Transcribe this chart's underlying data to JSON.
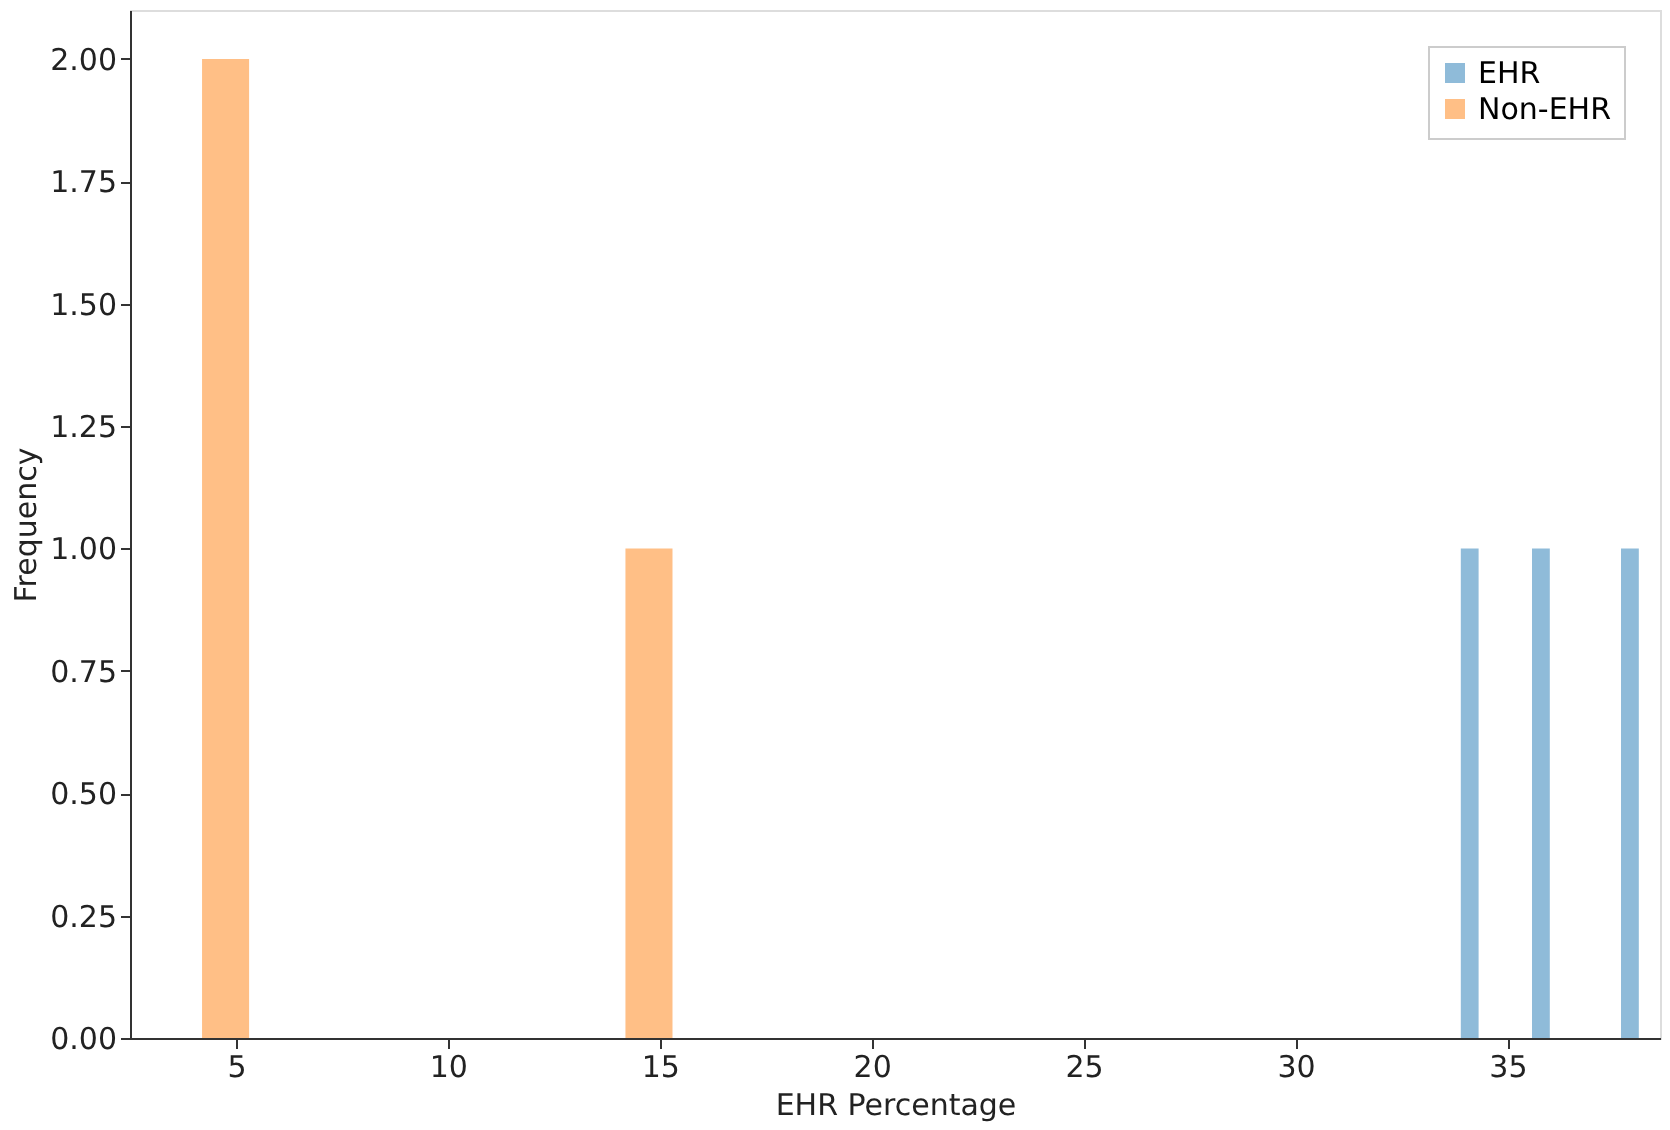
{
  "chart_data": {
    "type": "histogram",
    "xlabel": "EHR Percentage",
    "ylabel": "Frequency",
    "bins": [
      4.2,
      5.31,
      14.19,
      15.3,
      33.9,
      34.32,
      35.58,
      36.0,
      37.68,
      38.1
    ],
    "series": [
      {
        "name": "EHR",
        "color": "#8fbbd9",
        "values": [
          0,
          0,
          0,
          0,
          1,
          0,
          1,
          0,
          1
        ]
      },
      {
        "name": "Non-EHR",
        "color": "#ffbf86",
        "values": [
          2,
          0,
          1,
          0,
          0,
          0,
          0,
          0,
          0
        ]
      }
    ],
    "xlim": [
      2.5,
      38.6
    ],
    "xticks": [
      5,
      10,
      15,
      20,
      25,
      30,
      35
    ],
    "ylim": [
      0,
      2.1
    ],
    "yticks": [
      {
        "value": 0,
        "label": "0.00"
      },
      {
        "value": 0.25,
        "label": "0.25"
      },
      {
        "value": 0.5,
        "label": "0.50"
      },
      {
        "value": 0.75,
        "label": "0.75"
      },
      {
        "value": 1,
        "label": "1.00"
      },
      {
        "value": 1.25,
        "label": "1.25"
      },
      {
        "value": 1.5,
        "label": "1.50"
      },
      {
        "value": 1.75,
        "label": "1.75"
      },
      {
        "value": 2,
        "label": "2.00"
      }
    ],
    "grid": false,
    "legend": "top right"
  }
}
